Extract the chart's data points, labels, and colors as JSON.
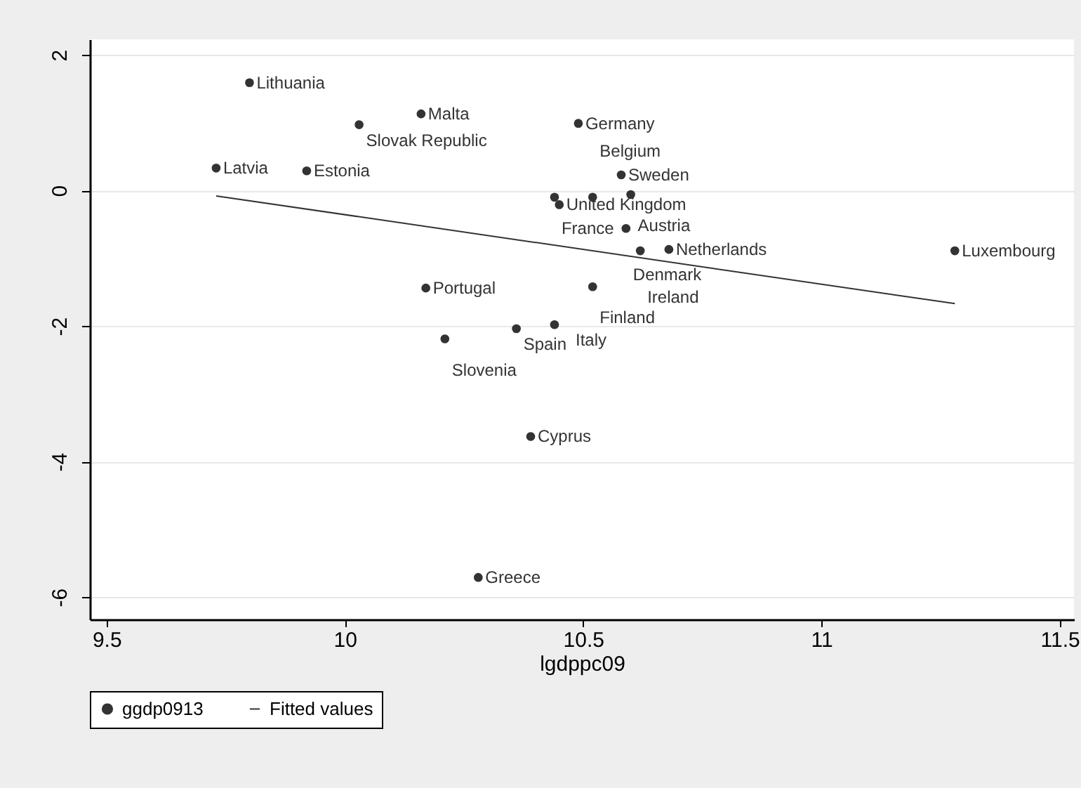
{
  "chart_data": {
    "type": "scatter",
    "xlabel": "lgdppc09",
    "xlim": [
      9.465,
      11.53
    ],
    "xticks": [
      9.5,
      10,
      10.5,
      11,
      11.5
    ],
    "ylim": [
      -6.33,
      2.23
    ],
    "yticks": [
      -6,
      -4,
      -2,
      0,
      2
    ],
    "grid": "y",
    "legend": "bottom",
    "series": [
      {
        "name": "ggdp0913",
        "type": "scatter",
        "color": "#333333",
        "marker": "circle",
        "x": [
          9.8,
          10.16,
          10.03,
          10.49,
          9.73,
          9.92,
          10.58,
          10.44,
          10.45,
          10.52,
          10.6,
          10.59,
          10.62,
          10.68,
          11.28,
          10.52,
          10.17,
          10.36,
          10.44,
          10.21,
          10.39,
          10.28
        ],
        "values": [
          1.59,
          1.13,
          0.97,
          0.99,
          0.33,
          0.29,
          0.23,
          -0.1,
          -0.21,
          -0.1,
          -0.06,
          -0.56,
          -0.89,
          -0.87,
          -0.89,
          -1.42,
          -1.44,
          -2.04,
          -1.98,
          -2.19,
          -3.63,
          -5.71
        ]
      },
      {
        "name": "Fitted values",
        "type": "line",
        "color": "#333333",
        "line_style": "solid",
        "x": [
          9.73,
          11.28
        ],
        "values": [
          -0.08,
          -1.67
        ]
      }
    ],
    "annotations": [
      {
        "text": "Lithuania",
        "x": 9.8,
        "y": 1.59
      },
      {
        "text": "Malta",
        "x": 10.16,
        "y": 1.13
      },
      {
        "text": "Slovak Republic",
        "x": 10.03,
        "y": 0.97
      },
      {
        "text": "Germany",
        "x": 10.49,
        "y": 0.99
      },
      {
        "text": "Latvia",
        "x": 9.73,
        "y": 0.33
      },
      {
        "text": "Estonia",
        "x": 9.92,
        "y": 0.29
      },
      {
        "text": "Sweden",
        "x": 10.58,
        "y": 0.23
      },
      {
        "text": "France",
        "x": 10.44,
        "y": -0.1
      },
      {
        "text": "United Kingdom",
        "x": 10.45,
        "y": -0.21
      },
      {
        "text": "Belgium",
        "x": 10.52,
        "y": -0.1
      },
      {
        "text": "Austria",
        "x": 10.6,
        "y": -0.06
      },
      {
        "text": "Denmark",
        "x": 10.59,
        "y": -0.56
      },
      {
        "text": "Ireland",
        "x": 10.62,
        "y": -0.89
      },
      {
        "text": "Netherlands",
        "x": 10.68,
        "y": -0.87
      },
      {
        "text": "Luxembourg",
        "x": 11.28,
        "y": -0.89
      },
      {
        "text": "Finland",
        "x": 10.52,
        "y": -1.42
      },
      {
        "text": "Portugal",
        "x": 10.17,
        "y": -1.44
      },
      {
        "text": "Spain",
        "x": 10.36,
        "y": -2.04
      },
      {
        "text": "Italy",
        "x": 10.44,
        "y": -1.98
      },
      {
        "text": "Slovenia",
        "x": 10.21,
        "y": -2.19
      },
      {
        "text": "Cyprus",
        "x": 10.39,
        "y": -3.63
      },
      {
        "text": "Greece",
        "x": 10.28,
        "y": -5.71
      }
    ]
  }
}
